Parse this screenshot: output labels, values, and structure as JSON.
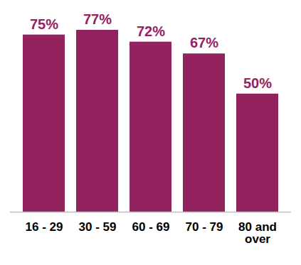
{
  "chart_data": {
    "type": "bar",
    "categories": [
      "16 - 29",
      "30 - 59",
      "60 - 69",
      "70 - 79",
      "80 and over"
    ],
    "values": [
      75,
      77,
      72,
      67,
      50
    ],
    "value_labels": [
      "75%",
      "77%",
      "72%",
      "67%",
      "50%"
    ],
    "color": "#92235f",
    "data_labels": true,
    "tick_labels": "x",
    "grid": false
  }
}
